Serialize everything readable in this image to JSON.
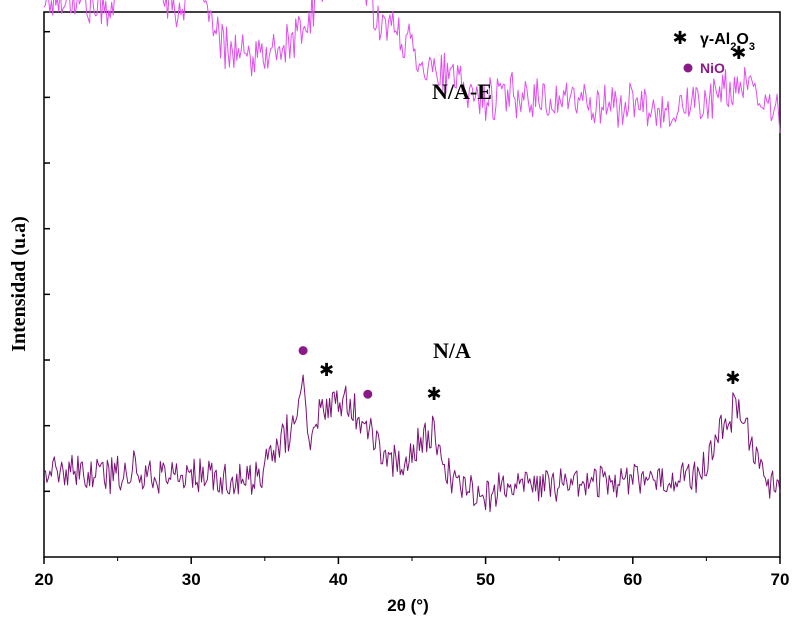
{
  "chart_data": {
    "type": "line",
    "title": "",
    "xlabel": "2θ (°)",
    "ylabel": "Intensidad (u.a)",
    "xlim": [
      20,
      70
    ],
    "xticks": [
      20,
      30,
      40,
      50,
      60,
      70
    ],
    "grid": false,
    "legend": {
      "placement": "top-right",
      "entries": [
        {
          "marker": "star",
          "label_main": "γ-Al",
          "sub1": "2",
          "mid": "O",
          "sub2": "3",
          "color": "#000000"
        },
        {
          "marker": "circle",
          "label": "NiO",
          "color": "#8b1a89"
        }
      ]
    },
    "series": [
      {
        "name": "N/A-E",
        "color": "#e04ef0",
        "anchors": [
          [
            20,
            1.02
          ],
          [
            22,
            1.03
          ],
          [
            24,
            1.0
          ],
          [
            25,
            1.03
          ],
          [
            26,
            1.06
          ],
          [
            27,
            1.09
          ],
          [
            28,
            1.05
          ],
          [
            29,
            1.0
          ],
          [
            30,
            1.04
          ],
          [
            30.5,
            1.12
          ],
          [
            31,
            1.0
          ],
          [
            32,
            0.94
          ],
          [
            33,
            0.93
          ],
          [
            34,
            0.91
          ],
          [
            35,
            0.92
          ],
          [
            36,
            0.93
          ],
          [
            37,
            0.95
          ],
          [
            38,
            0.98
          ],
          [
            39,
            1.05
          ],
          [
            40,
            1.1
          ],
          [
            41,
            1.08
          ],
          [
            42,
            1.03
          ],
          [
            43,
            0.98
          ],
          [
            44,
            0.96
          ],
          [
            45,
            0.94
          ],
          [
            46,
            0.9
          ],
          [
            47,
            0.89
          ],
          [
            48,
            0.87
          ],
          [
            49,
            0.85
          ],
          [
            50,
            0.84
          ],
          [
            52,
            0.85
          ],
          [
            54,
            0.84
          ],
          [
            56,
            0.84
          ],
          [
            58,
            0.83
          ],
          [
            60,
            0.83
          ],
          [
            62,
            0.82
          ],
          [
            64,
            0.83
          ],
          [
            66,
            0.85
          ],
          [
            67,
            0.87
          ],
          [
            68,
            0.85
          ],
          [
            69,
            0.83
          ],
          [
            70,
            0.81
          ]
        ],
        "noise": 0.035,
        "peaks": [
          {
            "x": 30.5,
            "marker": "star"
          },
          {
            "x": 39.9,
            "marker": "star"
          },
          {
            "x": 67.2,
            "marker": "star"
          }
        ]
      },
      {
        "name": "N/A",
        "color": "#7b1178",
        "anchors": [
          [
            20,
            0.16
          ],
          [
            22,
            0.15
          ],
          [
            24,
            0.15
          ],
          [
            26,
            0.16
          ],
          [
            28,
            0.15
          ],
          [
            30,
            0.15
          ],
          [
            32,
            0.14
          ],
          [
            34,
            0.14
          ],
          [
            35,
            0.16
          ],
          [
            36,
            0.21
          ],
          [
            37,
            0.24
          ],
          [
            37.6,
            0.32
          ],
          [
            38,
            0.22
          ],
          [
            38.5,
            0.24
          ],
          [
            39,
            0.28
          ],
          [
            40,
            0.3
          ],
          [
            41,
            0.28
          ],
          [
            42,
            0.24
          ],
          [
            43,
            0.19
          ],
          [
            44,
            0.17
          ],
          [
            45,
            0.19
          ],
          [
            46,
            0.22
          ],
          [
            46.5,
            0.24
          ],
          [
            47,
            0.17
          ],
          [
            48,
            0.13
          ],
          [
            49,
            0.12
          ],
          [
            50,
            0.12
          ],
          [
            52,
            0.13
          ],
          [
            54,
            0.13
          ],
          [
            56,
            0.14
          ],
          [
            58,
            0.14
          ],
          [
            60,
            0.15
          ],
          [
            62,
            0.14
          ],
          [
            64,
            0.15
          ],
          [
            65,
            0.17
          ],
          [
            66,
            0.23
          ],
          [
            67,
            0.28
          ],
          [
            68,
            0.22
          ],
          [
            69,
            0.15
          ],
          [
            70,
            0.12
          ]
        ],
        "noise": 0.03,
        "peaks": [
          {
            "x": 37.6,
            "marker": "circle"
          },
          {
            "x": 39.2,
            "marker": "star"
          },
          {
            "x": 42.0,
            "marker": "circle"
          },
          {
            "x": 46.5,
            "marker": "star"
          },
          {
            "x": 66.8,
            "marker": "star"
          }
        ]
      }
    ]
  }
}
